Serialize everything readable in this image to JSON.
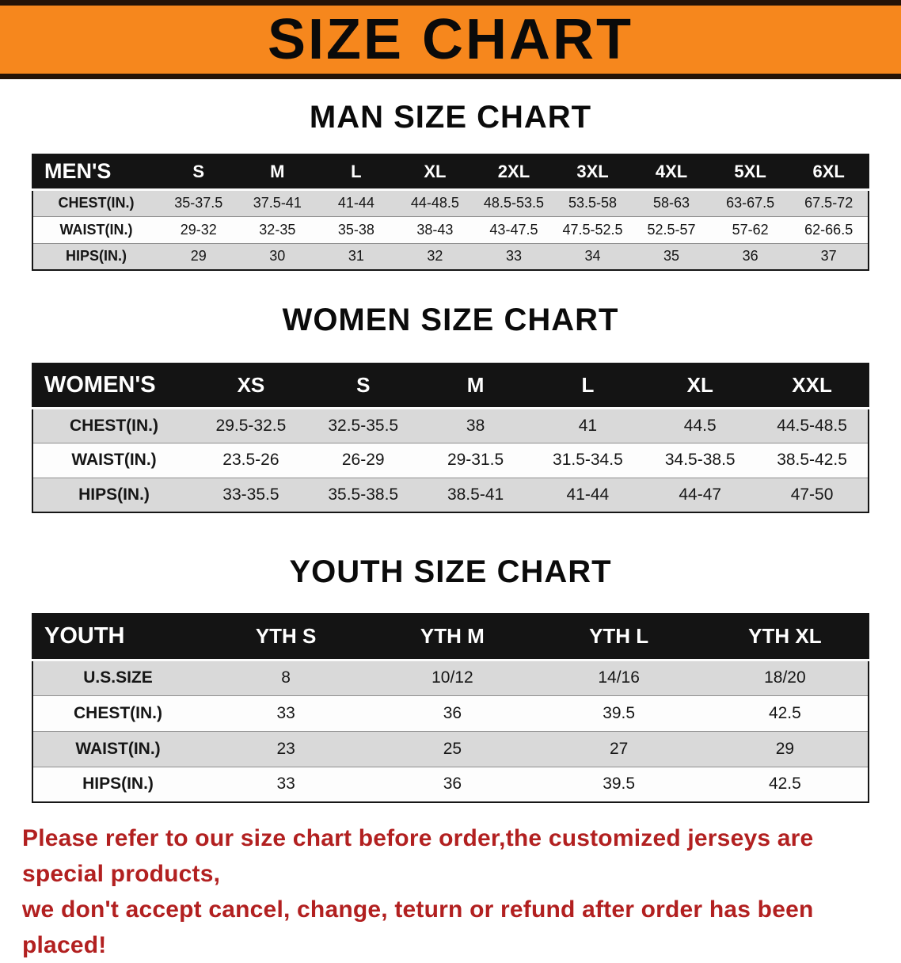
{
  "banner": {
    "title": "SIZE CHART",
    "bg_color": "#f6871d",
    "text_color": "#0a0a0a"
  },
  "chart_data": [
    {
      "type": "table",
      "title": "MAN SIZE CHART",
      "table_label": "MEN'S",
      "columns": [
        "S",
        "M",
        "L",
        "XL",
        "2XL",
        "3XL",
        "4XL",
        "5XL",
        "6XL"
      ],
      "rows": [
        {
          "label": "CHEST(IN.)",
          "values": [
            "35-37.5",
            "37.5-41",
            "41-44",
            "44-48.5",
            "48.5-53.5",
            "53.5-58",
            "58-63",
            "63-67.5",
            "67.5-72"
          ]
        },
        {
          "label": "WAIST(IN.)",
          "values": [
            "29-32",
            "32-35",
            "35-38",
            "38-43",
            "43-47.5",
            "47.5-52.5",
            "52.5-57",
            "57-62",
            "62-66.5"
          ]
        },
        {
          "label": "HIPS(IN.)",
          "values": [
            "29",
            "30",
            "31",
            "32",
            "33",
            "34",
            "35",
            "36",
            "37"
          ]
        }
      ]
    },
    {
      "type": "table",
      "title": "WOMEN SIZE CHART",
      "table_label": "WOMEN'S",
      "columns": [
        "XS",
        "S",
        "M",
        "L",
        "XL",
        "XXL"
      ],
      "rows": [
        {
          "label": "CHEST(IN.)",
          "values": [
            "29.5-32.5",
            "32.5-35.5",
            "38",
            "41",
            "44.5",
            "44.5-48.5"
          ]
        },
        {
          "label": "WAIST(IN.)",
          "values": [
            "23.5-26",
            "26-29",
            "29-31.5",
            "31.5-34.5",
            "34.5-38.5",
            "38.5-42.5"
          ]
        },
        {
          "label": "HIPS(IN.)",
          "values": [
            "33-35.5",
            "35.5-38.5",
            "38.5-41",
            "41-44",
            "44-47",
            "47-50"
          ]
        }
      ]
    },
    {
      "type": "table",
      "title": "YOUTH SIZE CHART",
      "table_label": "YOUTH",
      "columns": [
        "YTH S",
        "YTH M",
        "YTH L",
        "YTH XL"
      ],
      "rows": [
        {
          "label": "U.S.SIZE",
          "values": [
            "8",
            "10/12",
            "14/16",
            "18/20"
          ]
        },
        {
          "label": "CHEST(IN.)",
          "values": [
            "33",
            "36",
            "39.5",
            "42.5"
          ]
        },
        {
          "label": "WAIST(IN.)",
          "values": [
            "23",
            "25",
            "27",
            "29"
          ]
        },
        {
          "label": "HIPS(IN.)",
          "values": [
            "33",
            "36",
            "39.5",
            "42.5"
          ]
        }
      ]
    }
  ],
  "disclaimer": {
    "color": "#b22020",
    "line1": "Please refer to our size chart before order,the customized jerseys are special products,",
    "line2": "we don't accept cancel, change, teturn or refund after order has been placed!"
  }
}
